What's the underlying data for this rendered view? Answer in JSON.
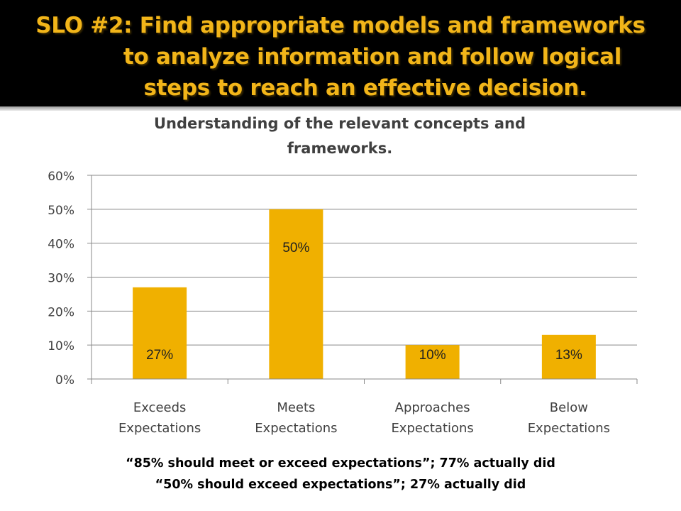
{
  "slide": {
    "title_lines": [
      "SLO #2: Find appropriate models and frameworks",
      "to analyze information and follow logical",
      "steps to reach an effective decision."
    ],
    "footnotes": [
      "“85% should meet or exceed expectations”; 77% actually did",
      "“50% should exceed expectations”; 27% actually did"
    ]
  },
  "colors": {
    "header_bg": "#000000",
    "title_text": "#f2b519",
    "bar_fill": "#f0b000",
    "gridline": "#898989"
  },
  "chart_data": {
    "type": "bar",
    "title": "Understanding of the relevant concepts and frameworks.",
    "title_lines": [
      "Understanding of the relevant concepts and",
      "frameworks."
    ],
    "categories": [
      [
        "Exceeds",
        "Expectations"
      ],
      [
        "Meets",
        "Expectations"
      ],
      [
        "Approaches",
        "Expectations"
      ],
      [
        "Below",
        "Expectations"
      ]
    ],
    "values": [
      27,
      50,
      10,
      13
    ],
    "data_labels": [
      "27%",
      "50%",
      "10%",
      "13%"
    ],
    "yticks": [
      "0%",
      "10%",
      "20%",
      "30%",
      "40%",
      "50%",
      "60%"
    ],
    "ylim": [
      0,
      60
    ],
    "grid": true,
    "legend": "none"
  }
}
